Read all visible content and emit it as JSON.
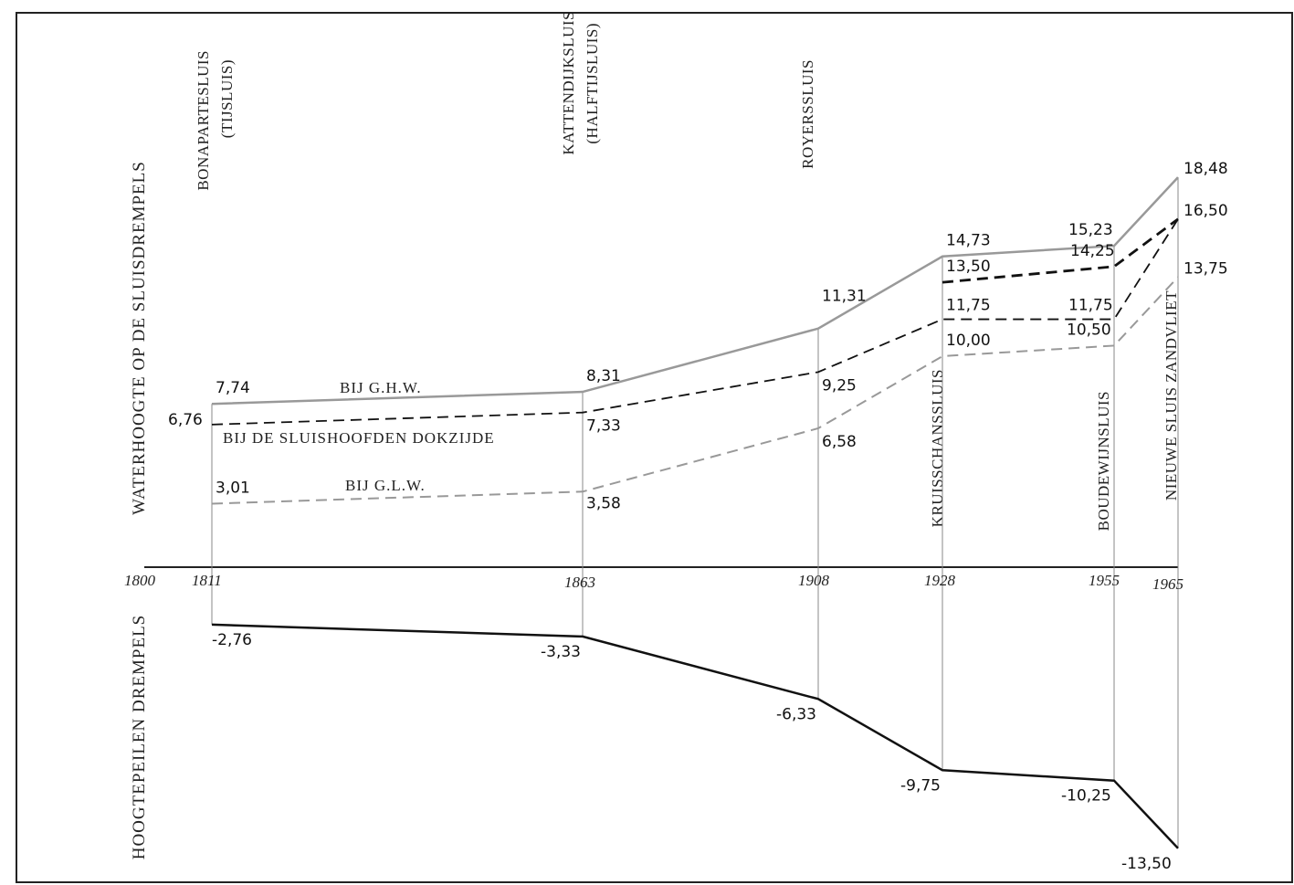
{
  "chart_data": {
    "type": "line",
    "axis_labels": {
      "upper": "WATERHOOGTE OP DE SLUISDREMPELS",
      "lower": "HOOGTEPEILEN DREMPELS"
    },
    "x_ticks": [
      "1800",
      "1811",
      "1863",
      "1908",
      "1928",
      "1955",
      "1965"
    ],
    "locks": [
      {
        "name": "BONAPARTESLUIS",
        "sub": "(TIJSLUIS)",
        "year": 1811
      },
      {
        "name": "KATTENDIJKSLUIS",
        "sub": "(HALFTIJSLUIS)",
        "year": 1863
      },
      {
        "name": "ROYERSSLUIS",
        "sub": "",
        "year": 1908
      },
      {
        "name": "KRUISSCHANSSLUIS",
        "sub": "",
        "year": 1928
      },
      {
        "name": "BOUDEWIJNSLUIS",
        "sub": "",
        "year": 1955
      },
      {
        "name": "NIEUWE SLUIS ZANDVLIET",
        "sub": "",
        "year": 1965
      }
    ],
    "x": [
      1811,
      1863,
      1908,
      1928,
      1955,
      1965
    ],
    "series": [
      {
        "name": "BIJ G.H.W.",
        "style": "solid-grey",
        "values": [
          7.74,
          8.31,
          11.31,
          14.73,
          15.23,
          18.48
        ],
        "labels": [
          "7,74",
          "8,31",
          "11,31",
          "14,73",
          "15,23",
          "18,48"
        ]
      },
      {
        "name": "BIJ DE SLUISHOOFDEN DOKZIJDE",
        "style": "dashed-black",
        "values": [
          6.76,
          7.33,
          9.25,
          11.75,
          11.75,
          16.5
        ],
        "labels": [
          "6,76",
          "7,33",
          "9,25",
          "11,75",
          "11,75",
          "16,50"
        ]
      },
      {
        "name": "",
        "style": "dashed-black-heavy",
        "x": [
          1928,
          1955,
          1965
        ],
        "values": [
          13.5,
          14.25,
          16.5
        ],
        "labels": [
          "13,50",
          "14,25",
          ""
        ]
      },
      {
        "name": "BIJ G.L.W.",
        "style": "dashed-grey",
        "values": [
          3.01,
          3.58,
          6.58,
          10.0,
          10.5,
          13.75
        ],
        "labels": [
          "3,01",
          "3,58",
          "6,58",
          "10,00",
          "10,50",
          "13,75"
        ]
      },
      {
        "name": "",
        "style": "solid-black",
        "values": [
          -2.76,
          -3.33,
          -6.33,
          -9.75,
          -10.25,
          -13.5
        ],
        "labels": [
          "-2,76",
          "-3,33",
          "-6,33",
          "-9,75",
          "-10,25",
          "-13,50"
        ]
      }
    ],
    "xlim": [
      1800,
      1965
    ],
    "ylim": [
      -13.5,
      18.48
    ],
    "grid": false,
    "colors": {
      "grey": "#999999",
      "black": "#111111"
    }
  }
}
